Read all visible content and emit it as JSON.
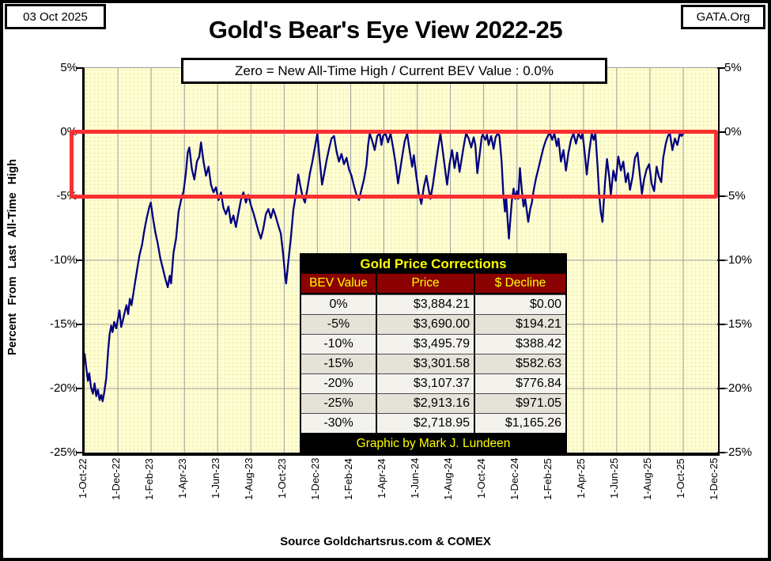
{
  "header": {
    "date_box": "03 Oct 2025",
    "brand_box": "GATA.Org",
    "title": "Gold's Bear's Eye View 2022-25",
    "subtitle": "Zero = New All-Time High / Current  BEV Value : 0.0%"
  },
  "footer": {
    "source": "Source Goldchartsrus.com & COMEX"
  },
  "table": {
    "title": "Gold Price Corrections",
    "columns": [
      "BEV Value",
      "Price",
      "$ Decline"
    ],
    "rows": [
      [
        "0%",
        "$3,884.21",
        "$0.00"
      ],
      [
        "-5%",
        "$3,690.00",
        "$194.21"
      ],
      [
        "-10%",
        "$3,495.79",
        "$388.42"
      ],
      [
        "-15%",
        "$3,301.58",
        "$582.63"
      ],
      [
        "-20%",
        "$3,107.37",
        "$776.84"
      ],
      [
        "-25%",
        "$2,913.16",
        "$971.05"
      ],
      [
        "-30%",
        "$2,718.95",
        "$1,165.26"
      ]
    ],
    "footer": "Graphic by Mark J. Lundeen"
  },
  "colors": {
    "line": "#000080",
    "highlight_box": "#f83030",
    "plot_background": "#FFFFD4",
    "grid": "#9c9c9c",
    "table_header_bg": "#8b0000",
    "table_accent_text": "#ffff00"
  },
  "chart_data": {
    "type": "line",
    "title": "Gold's Bear's Eye View 2022-25",
    "subtitle": "Zero = New All-Time High / Current  BEV Value : 0.0%",
    "ylabel": "Percent From Last All-Time High",
    "ylim": [
      -25,
      5
    ],
    "grid": true,
    "y_ticks": [
      5,
      0,
      -5,
      -10,
      -15,
      -20,
      -25
    ],
    "y_tick_labels": [
      "5%",
      "0%",
      "-5%",
      "-10%",
      "-15%",
      "-20%",
      "-25%"
    ],
    "x_tick_labels": [
      "1-Oct-22",
      "1-Dec-22",
      "1-Feb-23",
      "1-Apr-23",
      "1-Jun-23",
      "1-Aug-23",
      "1-Oct-23",
      "1-Dec-23",
      "1-Feb-24",
      "1-Apr-24",
      "1-Jun-24",
      "1-Aug-24",
      "1-Oct-24",
      "1-Dec-24",
      "1-Feb-25",
      "1-Apr-25",
      "1-Jun-25",
      "1-Aug-25",
      "1-Oct-25",
      "1-Dec-25"
    ],
    "x_unit": "months since 1-Oct-22 (2 months per tick)",
    "x_span_months": 38,
    "annotations": {
      "highlight_box": {
        "label": "0% to -5% BEV correction zone",
        "y_from": 0,
        "y_to": -5,
        "color": "#f83030"
      },
      "current_bev_value": "0.0%"
    },
    "series": [
      {
        "name": "Gold BEV — % below last all-time high (daily)",
        "color": "#000080",
        "points": [
          [
            0,
            -17.3
          ],
          [
            0.12,
            -18.6
          ],
          [
            0.2,
            -19.4
          ],
          [
            0.28,
            -18.8
          ],
          [
            0.38,
            -19.9
          ],
          [
            0.5,
            -20.4
          ],
          [
            0.6,
            -19.6
          ],
          [
            0.7,
            -20.6
          ],
          [
            0.8,
            -20.1
          ],
          [
            0.9,
            -20.9
          ],
          [
            1.0,
            -20.5
          ],
          [
            1.08,
            -21.0
          ],
          [
            1.18,
            -20.3
          ],
          [
            1.3,
            -19.2
          ],
          [
            1.42,
            -17.0
          ],
          [
            1.5,
            -15.8
          ],
          [
            1.6,
            -15.1
          ],
          [
            1.68,
            -15.6
          ],
          [
            1.78,
            -14.8
          ],
          [
            1.9,
            -15.3
          ],
          [
            2.0,
            -14.6
          ],
          [
            2.1,
            -13.9
          ],
          [
            2.2,
            -15.2
          ],
          [
            2.3,
            -14.7
          ],
          [
            2.42,
            -14.0
          ],
          [
            2.52,
            -13.5
          ],
          [
            2.62,
            -14.2
          ],
          [
            2.72,
            -13.0
          ],
          [
            2.82,
            -13.5
          ],
          [
            2.92,
            -12.7
          ],
          [
            3.0,
            -12.0
          ],
          [
            3.15,
            -10.8
          ],
          [
            3.3,
            -9.6
          ],
          [
            3.45,
            -8.8
          ],
          [
            3.6,
            -7.6
          ],
          [
            3.75,
            -6.6
          ],
          [
            3.9,
            -5.8
          ],
          [
            3.98,
            -5.5
          ],
          [
            4.1,
            -6.6
          ],
          [
            4.25,
            -7.8
          ],
          [
            4.4,
            -8.7
          ],
          [
            4.55,
            -9.8
          ],
          [
            4.7,
            -10.6
          ],
          [
            4.85,
            -11.4
          ],
          [
            5.0,
            -12.1
          ],
          [
            5.12,
            -11.2
          ],
          [
            5.2,
            -11.8
          ],
          [
            5.35,
            -9.4
          ],
          [
            5.5,
            -8.3
          ],
          [
            5.65,
            -6.2
          ],
          [
            5.8,
            -5.3
          ],
          [
            5.95,
            -4.6
          ],
          [
            6.1,
            -3.1
          ],
          [
            6.2,
            -1.6
          ],
          [
            6.3,
            -1.2
          ],
          [
            6.45,
            -2.9
          ],
          [
            6.6,
            -3.7
          ],
          [
            6.75,
            -2.3
          ],
          [
            6.9,
            -1.9
          ],
          [
            7.0,
            -0.8
          ],
          [
            7.15,
            -2.3
          ],
          [
            7.3,
            -3.4
          ],
          [
            7.45,
            -2.7
          ],
          [
            7.6,
            -4.1
          ],
          [
            7.75,
            -4.7
          ],
          [
            7.9,
            -4.3
          ],
          [
            8.05,
            -5.3
          ],
          [
            8.2,
            -4.7
          ],
          [
            8.35,
            -5.9
          ],
          [
            8.5,
            -6.4
          ],
          [
            8.65,
            -5.8
          ],
          [
            8.8,
            -7.1
          ],
          [
            8.95,
            -6.5
          ],
          [
            9.1,
            -7.4
          ],
          [
            9.25,
            -6.3
          ],
          [
            9.4,
            -5.3
          ],
          [
            9.55,
            -4.7
          ],
          [
            9.7,
            -5.5
          ],
          [
            9.85,
            -4.9
          ],
          [
            10.0,
            -5.7
          ],
          [
            10.15,
            -6.3
          ],
          [
            10.3,
            -7.0
          ],
          [
            10.45,
            -7.7
          ],
          [
            10.6,
            -8.3
          ],
          [
            10.75,
            -7.5
          ],
          [
            10.9,
            -6.4
          ],
          [
            11.05,
            -6.0
          ],
          [
            11.2,
            -6.7
          ],
          [
            11.35,
            -6.0
          ],
          [
            11.5,
            -6.6
          ],
          [
            11.65,
            -7.3
          ],
          [
            11.8,
            -7.9
          ],
          [
            11.95,
            -9.6
          ],
          [
            12.05,
            -11.1
          ],
          [
            12.12,
            -11.8
          ],
          [
            12.25,
            -10.1
          ],
          [
            12.4,
            -8.3
          ],
          [
            12.55,
            -6.1
          ],
          [
            12.7,
            -4.9
          ],
          [
            12.85,
            -3.3
          ],
          [
            12.95,
            -4.0
          ],
          [
            13.1,
            -5.0
          ],
          [
            13.25,
            -5.5
          ],
          [
            13.4,
            -4.4
          ],
          [
            13.55,
            -3.2
          ],
          [
            13.7,
            -2.3
          ],
          [
            13.85,
            -1.2
          ],
          [
            14.0,
            -0.1
          ],
          [
            14.12,
            -1.9
          ],
          [
            14.28,
            -4.1
          ],
          [
            14.4,
            -3.3
          ],
          [
            14.55,
            -2.2
          ],
          [
            14.7,
            -1.3
          ],
          [
            14.85,
            -0.5
          ],
          [
            15.0,
            -0.3
          ],
          [
            15.15,
            -1.5
          ],
          [
            15.3,
            -2.3
          ],
          [
            15.45,
            -1.7
          ],
          [
            15.6,
            -2.5
          ],
          [
            15.75,
            -2.0
          ],
          [
            15.9,
            -2.9
          ],
          [
            16.05,
            -3.4
          ],
          [
            16.2,
            -4.2
          ],
          [
            16.35,
            -4.9
          ],
          [
            16.5,
            -5.3
          ],
          [
            16.65,
            -4.5
          ],
          [
            16.8,
            -3.7
          ],
          [
            16.95,
            -2.6
          ],
          [
            17.05,
            -1.0
          ],
          [
            17.15,
            -0.1
          ],
          [
            17.3,
            -0.7
          ],
          [
            17.45,
            -1.4
          ],
          [
            17.6,
            -0.3
          ],
          [
            17.75,
            -0.1
          ],
          [
            17.85,
            -1.0
          ],
          [
            17.95,
            -0.3
          ],
          [
            18.1,
            -0.1
          ],
          [
            18.25,
            -0.8
          ],
          [
            18.4,
            -0.1
          ],
          [
            18.55,
            -1.2
          ],
          [
            18.7,
            -2.4
          ],
          [
            18.85,
            -4.0
          ],
          [
            18.95,
            -3.2
          ],
          [
            19.1,
            -1.9
          ],
          [
            19.25,
            -0.7
          ],
          [
            19.4,
            -0.1
          ],
          [
            19.55,
            -1.5
          ],
          [
            19.7,
            -2.7
          ],
          [
            19.8,
            -1.8
          ],
          [
            19.95,
            -3.4
          ],
          [
            20.1,
            -4.8
          ],
          [
            20.25,
            -5.6
          ],
          [
            20.4,
            -4.3
          ],
          [
            20.55,
            -3.4
          ],
          [
            20.7,
            -4.5
          ],
          [
            20.8,
            -5.2
          ],
          [
            20.95,
            -4.1
          ],
          [
            21.1,
            -2.7
          ],
          [
            21.25,
            -1.3
          ],
          [
            21.4,
            -0.1
          ],
          [
            21.55,
            -1.6
          ],
          [
            21.7,
            -3.1
          ],
          [
            21.8,
            -4.1
          ],
          [
            21.95,
            -2.5
          ],
          [
            22.1,
            -1.4
          ],
          [
            22.25,
            -2.8
          ],
          [
            22.4,
            -1.6
          ],
          [
            22.55,
            -3.1
          ],
          [
            22.7,
            -1.9
          ],
          [
            22.85,
            -0.7
          ],
          [
            22.95,
            -0.1
          ],
          [
            23.1,
            -0.5
          ],
          [
            23.25,
            -1.2
          ],
          [
            23.4,
            -0.4
          ],
          [
            23.5,
            -1.0
          ],
          [
            23.62,
            -3.2
          ],
          [
            23.75,
            -1.8
          ],
          [
            23.88,
            -0.4
          ],
          [
            23.95,
            -0.2
          ],
          [
            24.1,
            -0.6
          ],
          [
            24.2,
            -0.2
          ],
          [
            24.3,
            -1.0
          ],
          [
            24.45,
            -0.3
          ],
          [
            24.6,
            -1.3
          ],
          [
            24.72,
            -0.4
          ],
          [
            24.85,
            -0.1
          ],
          [
            24.95,
            -0.3
          ],
          [
            25.08,
            -2.3
          ],
          [
            25.18,
            -4.8
          ],
          [
            25.28,
            -6.2
          ],
          [
            25.35,
            -5.0
          ],
          [
            25.45,
            -7.0
          ],
          [
            25.52,
            -8.3
          ],
          [
            25.62,
            -6.6
          ],
          [
            25.7,
            -5.3
          ],
          [
            25.8,
            -4.4
          ],
          [
            25.9,
            -5.2
          ],
          [
            26.0,
            -4.6
          ],
          [
            26.08,
            -5.2
          ],
          [
            26.18,
            -2.8
          ],
          [
            26.3,
            -4.6
          ],
          [
            26.4,
            -5.8
          ],
          [
            26.5,
            -5.2
          ],
          [
            26.6,
            -6.2
          ],
          [
            26.68,
            -7.0
          ],
          [
            26.8,
            -6.0
          ],
          [
            26.9,
            -5.5
          ],
          [
            27.0,
            -4.6
          ],
          [
            27.15,
            -3.6
          ],
          [
            27.3,
            -2.8
          ],
          [
            27.45,
            -2.0
          ],
          [
            27.6,
            -1.2
          ],
          [
            27.75,
            -0.6
          ],
          [
            27.9,
            -0.2
          ],
          [
            28.0,
            -0.1
          ],
          [
            28.12,
            -0.6
          ],
          [
            28.25,
            -0.1
          ],
          [
            28.4,
            -1.1
          ],
          [
            28.5,
            -0.5
          ],
          [
            28.65,
            -2.3
          ],
          [
            28.8,
            -1.4
          ],
          [
            28.95,
            -3.0
          ],
          [
            29.1,
            -1.6
          ],
          [
            29.25,
            -0.6
          ],
          [
            29.4,
            -0.1
          ],
          [
            29.55,
            -0.9
          ],
          [
            29.7,
            -0.1
          ],
          [
            29.85,
            -0.5
          ],
          [
            29.95,
            -0.1
          ],
          [
            30.1,
            -1.9
          ],
          [
            30.2,
            -3.3
          ],
          [
            30.35,
            -1.5
          ],
          [
            30.5,
            -0.1
          ],
          [
            30.62,
            -0.6
          ],
          [
            30.72,
            -0.1
          ],
          [
            30.85,
            -2.7
          ],
          [
            30.95,
            -4.9
          ],
          [
            31.05,
            -6.3
          ],
          [
            31.15,
            -7.0
          ],
          [
            31.3,
            -3.9
          ],
          [
            31.42,
            -2.1
          ],
          [
            31.55,
            -3.5
          ],
          [
            31.65,
            -4.9
          ],
          [
            31.8,
            -3.0
          ],
          [
            31.95,
            -3.8
          ],
          [
            32.1,
            -1.9
          ],
          [
            32.25,
            -3.0
          ],
          [
            32.4,
            -2.3
          ],
          [
            32.55,
            -3.9
          ],
          [
            32.68,
            -3.2
          ],
          [
            32.8,
            -4.5
          ],
          [
            32.95,
            -3.5
          ],
          [
            33.1,
            -2.0
          ],
          [
            33.25,
            -1.6
          ],
          [
            33.4,
            -3.4
          ],
          [
            33.52,
            -4.8
          ],
          [
            33.65,
            -3.7
          ],
          [
            33.8,
            -2.9
          ],
          [
            33.95,
            -2.5
          ],
          [
            34.1,
            -4.0
          ],
          [
            34.25,
            -4.6
          ],
          [
            34.4,
            -2.7
          ],
          [
            34.55,
            -3.5
          ],
          [
            34.68,
            -3.9
          ],
          [
            34.8,
            -2.0
          ],
          [
            34.95,
            -0.9
          ],
          [
            35.08,
            -0.3
          ],
          [
            35.2,
            -0.1
          ],
          [
            35.35,
            -1.4
          ],
          [
            35.5,
            -0.5
          ],
          [
            35.65,
            -1.0
          ],
          [
            35.8,
            -0.1
          ],
          [
            35.9,
            -0.3
          ],
          [
            36.05,
            -0.05
          ]
        ]
      }
    ]
  }
}
